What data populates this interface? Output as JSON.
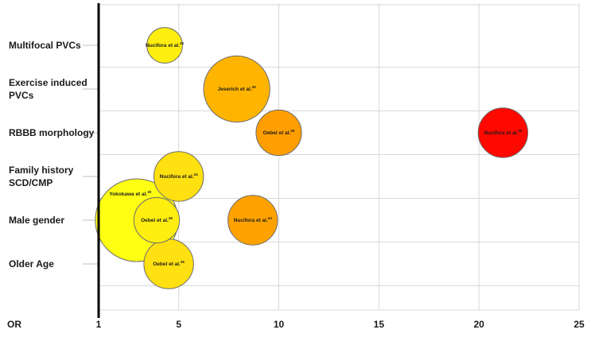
{
  "chart_data": {
    "type": "scatter",
    "title": "",
    "xlabel": "OR",
    "ylabel": "",
    "xlim": [
      1,
      25
    ],
    "x_ticks": [
      1,
      5,
      10,
      15,
      20,
      25
    ],
    "x_tick_labels": [
      "1",
      "5",
      "10",
      "15",
      "20",
      "25"
    ],
    "grid": true,
    "categories": [
      {
        "key": "multifocal",
        "lines": [
          "Multifocal PVCs"
        ]
      },
      {
        "key": "exercise",
        "lines": [
          "Exercise induced",
          "PVCs"
        ]
      },
      {
        "key": "rbbb",
        "lines": [
          "RBBB morphology"
        ]
      },
      {
        "key": "family",
        "lines": [
          "Family history",
          "SCD/CMP"
        ]
      },
      {
        "key": "male",
        "lines": [
          "Male gender"
        ]
      },
      {
        "key": "older",
        "lines": [
          "Older Age"
        ]
      }
    ],
    "bubbles": [
      {
        "label": "Yokokawa et al.",
        "ref": "30",
        "category": "male",
        "x": 2.9,
        "size": 1.0,
        "color": "#ffff14",
        "label_pos": "upper-left"
      },
      {
        "label": "Nucifora et al.",
        "ref": "26",
        "category": "multifocal",
        "x": 4.3,
        "size": 0.43,
        "color": "#ffee10",
        "label_pos": "center"
      },
      {
        "label": "Jeserich et al.",
        "ref": "29",
        "category": "exercise",
        "x": 7.9,
        "size": 0.8,
        "color": "#ffb400",
        "label_pos": "center"
      },
      {
        "label": "Oebel et al.",
        "ref": "26",
        "category": "rbbb",
        "x": 10.0,
        "size": 0.55,
        "color": "#ff9e00",
        "label_pos": "center"
      },
      {
        "label": "Nucifora et al.",
        "ref": "26",
        "category": "rbbb",
        "x": 21.2,
        "size": 0.6,
        "color": "#ff0800",
        "label_pos": "center"
      },
      {
        "label": "Nucifora et al.",
        "ref": "24",
        "category": "family",
        "x": 5.0,
        "size": 0.6,
        "color": "#ffe010",
        "label_pos": "center"
      },
      {
        "label": "Oebel et al.",
        "ref": "26",
        "category": "male",
        "x": 3.9,
        "size": 0.55,
        "color": "#ffee10",
        "label_pos": "center"
      },
      {
        "label": "Nucifora et al.",
        "ref": "24",
        "category": "male",
        "x": 8.7,
        "size": 0.6,
        "color": "#ffa200",
        "label_pos": "center"
      },
      {
        "label": "Oebel et al.",
        "ref": "26",
        "category": "older",
        "x": 4.5,
        "size": 0.6,
        "color": "#ffe010",
        "label_pos": "center"
      }
    ]
  }
}
